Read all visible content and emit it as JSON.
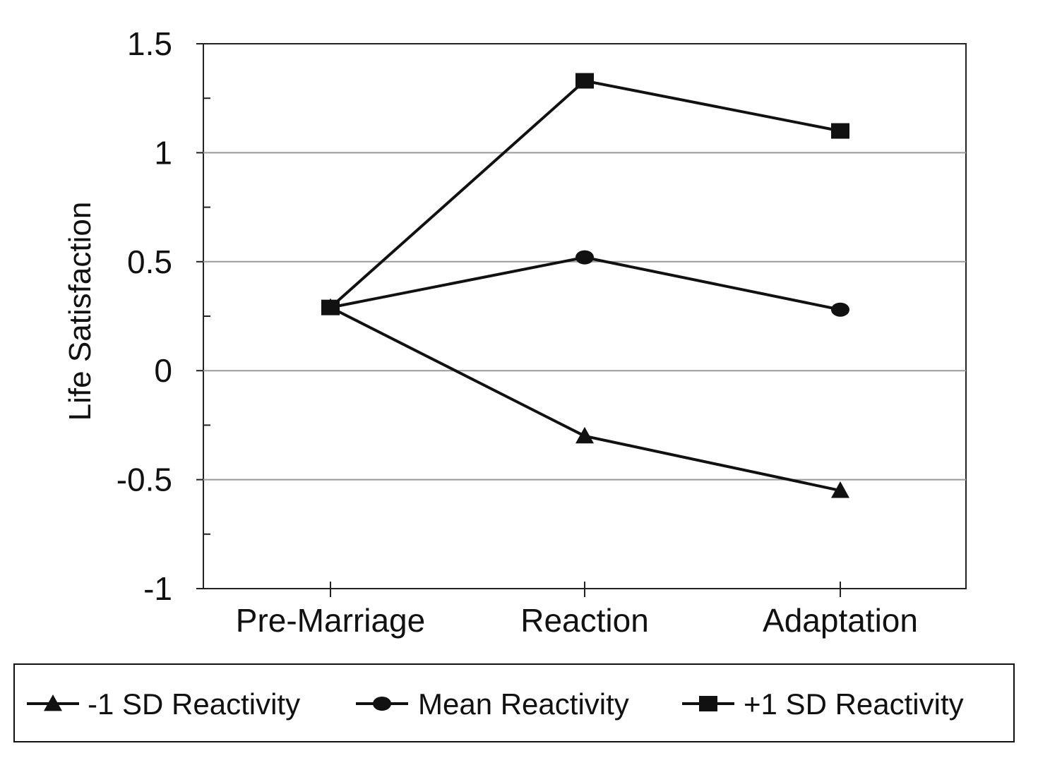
{
  "chart_data": {
    "type": "line",
    "title": "",
    "xlabel": "",
    "ylabel": "Life Satisfaction",
    "categories": [
      "Pre-Marriage",
      "Reaction",
      "Adaptation"
    ],
    "ylim": [
      -1,
      1.5
    ],
    "yticks": [
      "1.5",
      "1",
      "0.5",
      "0",
      "-0.5",
      "-1"
    ],
    "ytick_values": [
      1.5,
      1,
      0.5,
      0,
      -0.5,
      -1
    ],
    "grid": true,
    "legend_position": "bottom",
    "series": [
      {
        "name": "-1 SD Reactivity",
        "marker": "triangle",
        "values": [
          0.29,
          -0.3,
          -0.55
        ]
      },
      {
        "name": "Mean Reactivity",
        "marker": "circle",
        "values": [
          0.29,
          0.52,
          0.28
        ]
      },
      {
        "name": "+1 SD Reactivity",
        "marker": "square",
        "values": [
          0.29,
          1.33,
          1.1
        ]
      }
    ],
    "colors": {
      "line": "#111111",
      "grid": "#9a9a9a",
      "axis": "#222222"
    }
  }
}
